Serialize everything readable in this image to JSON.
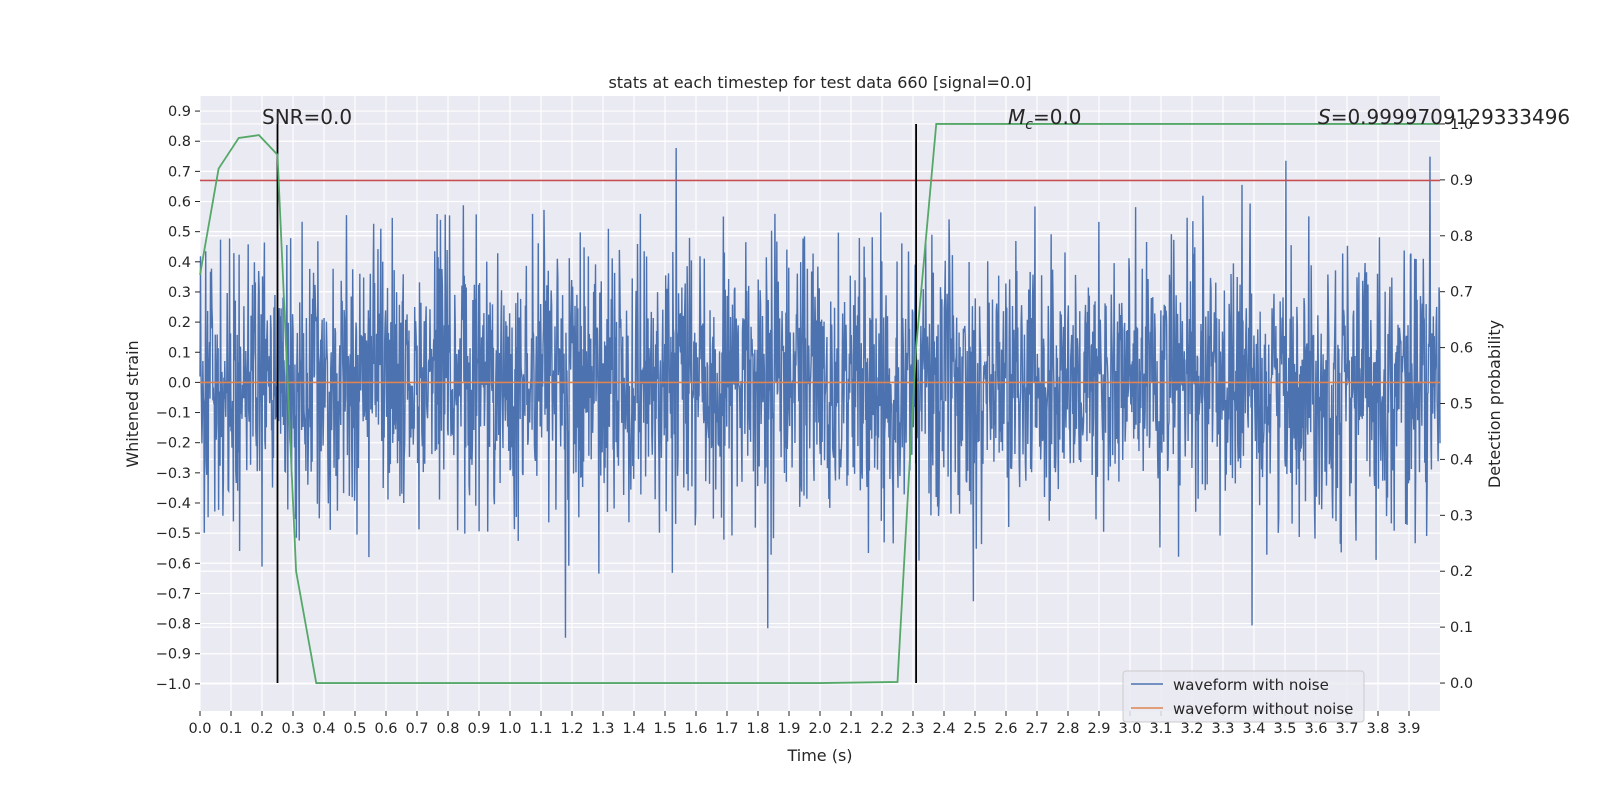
{
  "chart_data": {
    "type": "line",
    "title": "stats at each timestep for test data 660 [signal=0.0]",
    "xlabel": "Time (s)",
    "ylabel": "Whitened strain",
    "y2label": "Detection probability",
    "xlim": [
      0.0,
      4.0
    ],
    "ylim": [
      -1.09,
      0.95
    ],
    "y2lim": [
      -0.05,
      1.05
    ],
    "xticks": [
      "0.0",
      "0.1",
      "0.2",
      "0.3",
      "0.4",
      "0.5",
      "0.6",
      "0.7",
      "0.8",
      "0.9",
      "1.0",
      "1.1",
      "1.2",
      "1.3",
      "1.4",
      "1.5",
      "1.6",
      "1.7",
      "1.8",
      "1.9",
      "2.0",
      "2.1",
      "2.2",
      "2.3",
      "2.4",
      "2.5",
      "2.6",
      "2.7",
      "2.8",
      "2.9",
      "3.0",
      "3.1",
      "3.2",
      "3.3",
      "3.4",
      "3.5",
      "3.6",
      "3.7",
      "3.8",
      "3.9"
    ],
    "yticks": [
      "0.9",
      "0.8",
      "0.7",
      "0.6",
      "0.5",
      "0.4",
      "0.3",
      "0.2",
      "0.1",
      "0.0",
      "−0.1",
      "−0.2",
      "−0.3",
      "−0.4",
      "−0.5",
      "−0.6",
      "−0.7",
      "−0.8",
      "−0.9",
      "−1.0"
    ],
    "y2ticks": [
      "1.0",
      "0.9",
      "0.8",
      "0.7",
      "0.6",
      "0.5",
      "0.4",
      "0.3",
      "0.2",
      "0.1",
      "0.0"
    ],
    "annotations": {
      "snr": "SNR=0.0",
      "mc_symbol": "M",
      "mc_sub": "c",
      "mc_value": "=0.0",
      "s_symbol": "S",
      "s_value": "=0.9999709129333496"
    },
    "vlines": [
      0.25,
      2.31
    ],
    "threshold_line": {
      "y": 0.67,
      "color": "#c44e52"
    },
    "series": [
      {
        "name": "waveform with noise",
        "color": "#4c72b0",
        "amplitude_typical": 0.4,
        "peak_min": -1.0,
        "peak_max": 0.86
      },
      {
        "name": "waveform without noise",
        "color": "#dd8452",
        "values": [
          0.0,
          0.0
        ]
      },
      {
        "name": "detection probability",
        "color": "#55a868",
        "axis": "right",
        "x": [
          0.0,
          0.06,
          0.125,
          0.19,
          0.25,
          0.31,
          0.375,
          0.44,
          1.0,
          1.5,
          2.0,
          2.25,
          2.31,
          2.375,
          2.5,
          3.0,
          3.5,
          4.0
        ],
        "values": [
          0.73,
          0.92,
          0.975,
          0.98,
          0.945,
          0.2,
          0.0,
          0.0,
          0.0,
          0.0,
          0.0,
          0.002,
          0.6,
          1.0,
          1.0,
          1.0,
          1.0,
          1.0
        ]
      }
    ],
    "legend": {
      "placement": "lower-right",
      "entries": [
        "waveform with noise",
        "waveform without noise"
      ]
    }
  }
}
